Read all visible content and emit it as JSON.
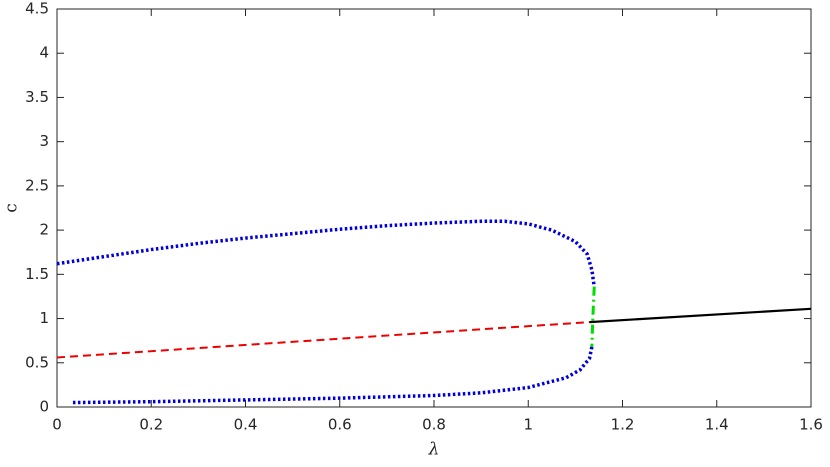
{
  "chart_data": {
    "type": "line",
    "xlabel": "λ",
    "ylabel": "c",
    "xlim": [
      0,
      1.6
    ],
    "xticks": [
      0,
      0.2,
      0.4,
      0.6,
      0.8,
      1,
      1.2,
      1.4,
      1.6
    ],
    "ylim": [
      0,
      4.5
    ],
    "yticks": [
      0,
      0.5,
      1,
      1.5,
      2,
      2.5,
      3,
      3.5,
      4,
      4.5
    ],
    "grid": false,
    "series": [
      {
        "color": "#0000dd",
        "linestyle": "dotted",
        "linewidth": 3.5,
        "x": [
          0,
          0.1,
          0.2,
          0.3,
          0.4,
          0.5,
          0.6,
          0.7,
          0.8,
          0.9,
          0.95,
          1.0,
          1.05,
          1.1,
          1.125,
          1.135,
          1.14
        ],
        "values": [
          1.62,
          1.7,
          1.78,
          1.85,
          1.91,
          1.96,
          2.01,
          2.05,
          2.08,
          2.1,
          2.1,
          2.07,
          2.0,
          1.87,
          1.73,
          1.55,
          1.36
        ]
      },
      {
        "color": "#00dd00",
        "linestyle": "dashdot",
        "linewidth": 3,
        "x": [
          1.14,
          1.137,
          1.135
        ],
        "values": [
          1.36,
          1.0,
          0.68
        ]
      },
      {
        "color": "#0000dd",
        "linestyle": "dotted",
        "linewidth": 3.5,
        "x": [
          1.135,
          1.13,
          1.11,
          1.08,
          1.0,
          0.9,
          0.8,
          0.6,
          0.4,
          0.2,
          0.03
        ],
        "values": [
          0.68,
          0.55,
          0.42,
          0.33,
          0.22,
          0.16,
          0.13,
          0.1,
          0.08,
          0.06,
          0.05
        ]
      },
      {
        "color": "#ee0000",
        "linestyle": "dashed",
        "linewidth": 2,
        "x": [
          0,
          1.13
        ],
        "values": [
          0.56,
          0.96
        ]
      },
      {
        "color": "#000000",
        "linestyle": "solid",
        "linewidth": 2.2,
        "x": [
          1.13,
          1.6
        ],
        "values": [
          0.96,
          1.11
        ]
      }
    ]
  }
}
